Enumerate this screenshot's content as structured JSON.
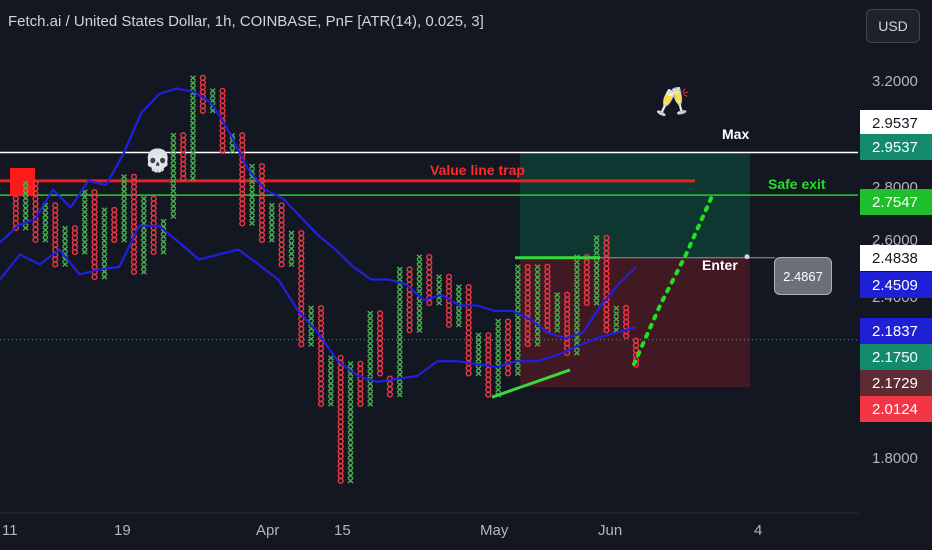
{
  "header": {
    "title": "Fetch.ai / United States Dollar, 1h, COINBASE, PnF [ATR(14), 0.025, 3]",
    "currency_button": "USD"
  },
  "colors": {
    "background": "#131722",
    "up_box": "#4caf50",
    "down_box": "#f23645",
    "band": "#2020e0",
    "value_line": "#e5221b",
    "safe_exit": "#22d022",
    "max_line": "#ffffff"
  },
  "chart_data": {
    "type": "line",
    "title": "Fetch.ai / United States Dollar, 1h, COINBASE, PnF [ATR(14), 0.025, 3]",
    "x_tick_labels": [
      "11",
      "19",
      "Apr",
      "15",
      "May",
      "Jun",
      "4"
    ],
    "y_tick_labels": [
      "3.2000",
      "2.8000",
      "2.6000",
      "2.4000",
      "1.8000"
    ],
    "y_scale": "log",
    "ylim": [
      1.66,
      3.55
    ],
    "horizontal_lines": [
      {
        "name": "Max",
        "value": 2.9537
      },
      {
        "name": "Value line trap",
        "value": 2.82
      },
      {
        "name": "Safe exit",
        "value": 2.7547
      },
      {
        "name": "Enter",
        "value": 2.4867
      }
    ],
    "price_labels": [
      {
        "value": "2.9537",
        "kind": "white"
      },
      {
        "value": "2.9537",
        "kind": "teal"
      },
      {
        "value": "2.7547",
        "kind": "green"
      },
      {
        "value": "2.4838",
        "kind": "white"
      },
      {
        "value": "2.4509",
        "kind": "blue"
      },
      {
        "value": "2.1837",
        "kind": "blue"
      },
      {
        "value": "2.1750",
        "kind": "teal"
      },
      {
        "value": "2.1729",
        "kind": "maroon"
      },
      {
        "value": "2.0124",
        "kind": "red"
      }
    ],
    "annotations": {
      "max": "Max",
      "value_trap": "Value line trap",
      "safe_exit": "Safe exit",
      "enter": "Enter",
      "enter_price": "2.4867",
      "emoji_cheers": "🥂",
      "emoji_skull": "💀"
    },
    "price_path": [
      2.75,
      2.6,
      2.82,
      2.55,
      2.72,
      2.45,
      2.62,
      2.5,
      2.78,
      2.4,
      2.7,
      2.55,
      2.85,
      2.42,
      2.75,
      2.5,
      2.65,
      3.05,
      2.82,
      3.35,
      3.15,
      3.28,
      2.95,
      3.05,
      2.62,
      2.9,
      2.55,
      2.72,
      2.45,
      2.6,
      2.15,
      2.3,
      1.95,
      2.12,
      1.72,
      2.1,
      1.95,
      2.28,
      2.05,
      1.98,
      2.45,
      2.2,
      2.5,
      2.3,
      2.42,
      2.22,
      2.38,
      2.05,
      2.2,
      1.98,
      2.25,
      2.05,
      2.46,
      2.15,
      2.46,
      2.2,
      2.35,
      2.12,
      2.5,
      2.3,
      2.58,
      2.2,
      2.3,
      2.18,
      2.08
    ],
    "band_upper": [
      2.55,
      2.62,
      2.65,
      2.78,
      2.7,
      2.82,
      2.8,
      2.95,
      3.15,
      3.25,
      3.28,
      3.26,
      3.2,
      3.05,
      2.88,
      2.78,
      2.74,
      2.66,
      2.58,
      2.52,
      2.45,
      2.4,
      2.4,
      2.38,
      2.32,
      2.34,
      2.3,
      2.3,
      2.28,
      2.28,
      2.25,
      2.2,
      2.18,
      2.2,
      2.3,
      2.38,
      2.45
    ],
    "band_lower": [
      2.4,
      2.5,
      2.46,
      2.52,
      2.42,
      2.44,
      2.45,
      2.62,
      2.62,
      2.55,
      2.48,
      2.5,
      2.52,
      2.46,
      2.4,
      2.28,
      2.2,
      2.1,
      2.05,
      2.03,
      2.04,
      2.05,
      2.1,
      2.1,
      2.09,
      2.08,
      2.1,
      2.1,
      2.12,
      2.15,
      2.18,
      2.2,
      2.22
    ],
    "future_projection": [
      2.09,
      2.3,
      2.5,
      2.75
    ],
    "support_line": [
      1.98,
      2.07
    ],
    "resistance_line": [
      2.4867,
      2.4867
    ],
    "grid": false
  }
}
